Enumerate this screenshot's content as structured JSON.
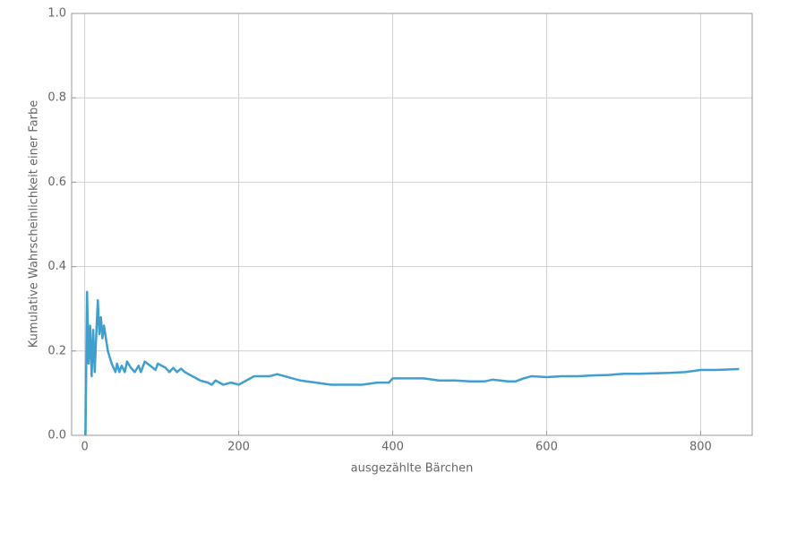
{
  "chart_data": {
    "type": "line",
    "xlabel": "ausgezählte Bärchen",
    "ylabel": "Kumulative Wahrscheinlichkeit einer Farbe",
    "color": "#3f9fcf",
    "grid": true,
    "xlim": [
      -17,
      867
    ],
    "ylim": [
      0,
      1
    ],
    "xticks": [
      0,
      200,
      400,
      600,
      800
    ],
    "yticks": [
      {
        "value": 0,
        "label": "0.0"
      },
      0.2,
      0.4,
      0.6,
      0.8,
      {
        "value": 1,
        "label": "1.0"
      }
    ],
    "x": [
      1,
      3,
      5,
      7,
      9,
      11,
      13,
      15,
      17,
      19,
      21,
      23,
      25,
      30,
      35,
      40,
      42,
      45,
      48,
      52,
      55,
      60,
      65,
      70,
      73,
      78,
      85,
      92,
      95,
      105,
      110,
      115,
      120,
      125,
      130,
      140,
      150,
      160,
      165,
      170,
      180,
      190,
      200,
      210,
      220,
      230,
      240,
      250,
      260,
      280,
      300,
      320,
      340,
      360,
      380,
      395,
      400,
      420,
      440,
      460,
      480,
      500,
      520,
      530,
      550,
      560,
      570,
      580,
      600,
      620,
      640,
      660,
      680,
      700,
      720,
      740,
      760,
      780,
      800,
      820,
      850
    ],
    "values": [
      0,
      0.34,
      0.17,
      0.26,
      0.14,
      0.25,
      0.15,
      0.24,
      0.32,
      0.24,
      0.28,
      0.23,
      0.26,
      0.2,
      0.17,
      0.15,
      0.17,
      0.15,
      0.165,
      0.15,
      0.175,
      0.16,
      0.15,
      0.165,
      0.15,
      0.175,
      0.165,
      0.155,
      0.17,
      0.16,
      0.15,
      0.16,
      0.15,
      0.158,
      0.15,
      0.14,
      0.13,
      0.125,
      0.12,
      0.13,
      0.12,
      0.125,
      0.12,
      0.13,
      0.14,
      0.14,
      0.14,
      0.145,
      0.14,
      0.13,
      0.125,
      0.12,
      0.12,
      0.12,
      0.125,
      0.125,
      0.135,
      0.135,
      0.135,
      0.13,
      0.13,
      0.128,
      0.128,
      0.132,
      0.128,
      0.128,
      0.135,
      0.14,
      0.138,
      0.14,
      0.14,
      0.142,
      0.143,
      0.146,
      0.146,
      0.147,
      0.148,
      0.15,
      0.155,
      0.155,
      0.157
    ]
  }
}
